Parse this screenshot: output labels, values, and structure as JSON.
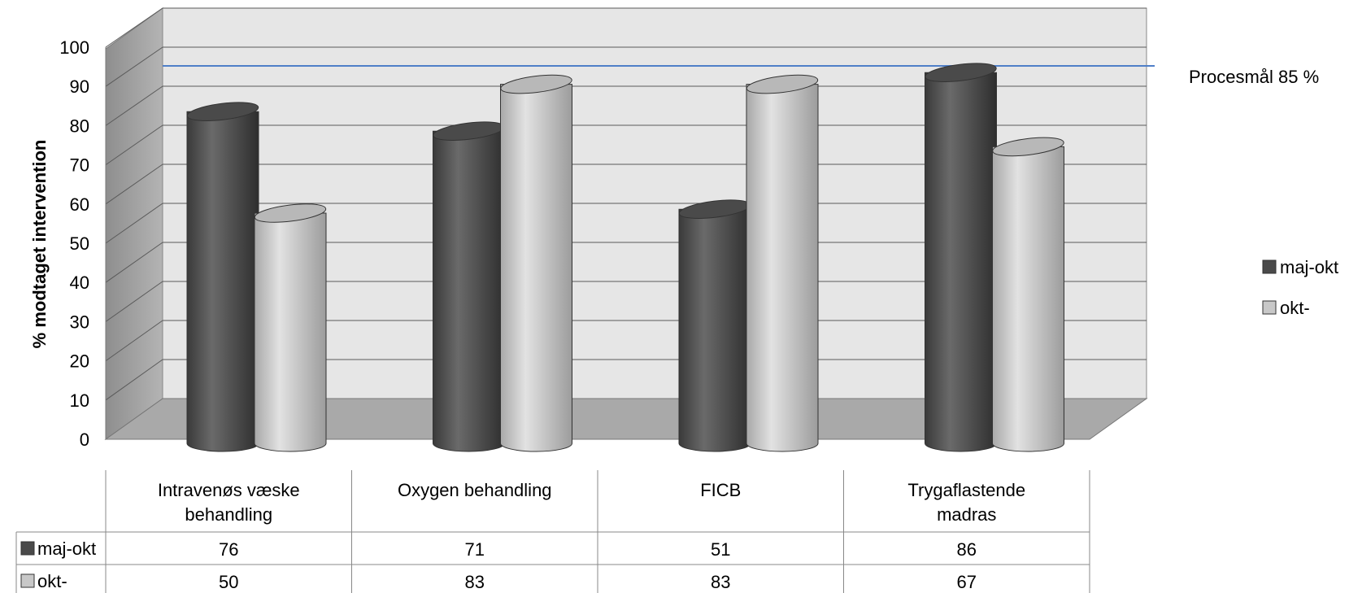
{
  "chart_data": {
    "type": "bar",
    "ylabel": "% modtaget intervention",
    "ylim": [
      0,
      100
    ],
    "yticks": [
      0,
      10,
      20,
      30,
      40,
      50,
      60,
      70,
      80,
      90,
      100
    ],
    "grid": true,
    "categories": [
      "Intravenøs væske behandling",
      "Oxygen behandling",
      "FICB",
      "Trygaflastende madras"
    ],
    "series": [
      {
        "name": "maj-okt",
        "values": [
          76,
          71,
          51,
          86
        ],
        "color": "#505050"
      },
      {
        "name": "okt-",
        "values": [
          50,
          83,
          83,
          67
        ],
        "color": "#c4c4c4"
      }
    ],
    "reference_line": {
      "value": 85,
      "label": "Procesmål 85 %",
      "color": "#4f7fc8"
    },
    "legend_position": "right",
    "data_table": true
  }
}
